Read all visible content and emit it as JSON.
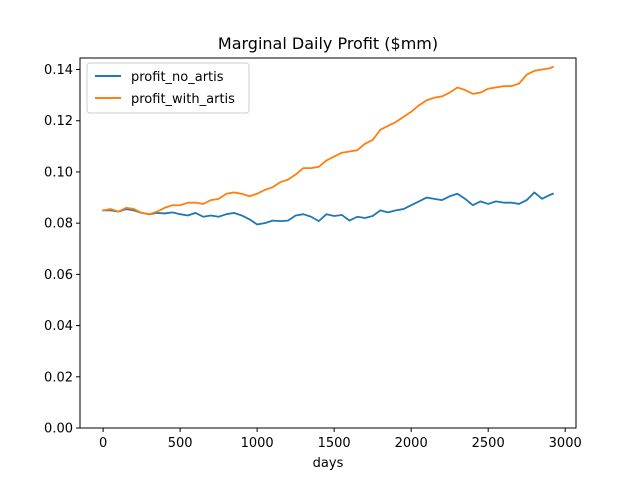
{
  "chart_data": {
    "type": "line",
    "title": "Marginal Daily Profit ($mm)",
    "xlabel": "days",
    "ylabel": "",
    "xlim": [
      -150,
      3070
    ],
    "ylim": [
      0.0,
      0.1445
    ],
    "x_ticks": [
      0,
      500,
      1000,
      1500,
      2000,
      2500,
      3000
    ],
    "x_tick_labels": [
      "0",
      "500",
      "1000",
      "1500",
      "2000",
      "2500",
      "3000"
    ],
    "y_ticks": [
      0.0,
      0.02,
      0.04,
      0.06,
      0.08,
      0.1,
      0.12,
      0.14
    ],
    "y_tick_labels": [
      "0.00",
      "0.02",
      "0.04",
      "0.06",
      "0.08",
      "0.10",
      "0.12",
      "0.14"
    ],
    "grid": false,
    "legend_position": "upper-left",
    "series": [
      {
        "name": "profit_no_artis",
        "color": "#1f77b4",
        "x": [
          0,
          50,
          100,
          150,
          200,
          250,
          300,
          350,
          400,
          450,
          500,
          550,
          600,
          650,
          700,
          750,
          800,
          850,
          900,
          950,
          1000,
          1050,
          1100,
          1150,
          1200,
          1250,
          1300,
          1350,
          1400,
          1450,
          1500,
          1550,
          1600,
          1650,
          1700,
          1750,
          1800,
          1850,
          1900,
          1950,
          2000,
          2050,
          2100,
          2150,
          2200,
          2250,
          2300,
          2350,
          2400,
          2450,
          2500,
          2550,
          2600,
          2650,
          2700,
          2750,
          2800,
          2850,
          2900,
          2920
        ],
        "y": [
          0.085,
          0.085,
          0.0845,
          0.0855,
          0.085,
          0.084,
          0.0835,
          0.084,
          0.0838,
          0.0842,
          0.0835,
          0.083,
          0.084,
          0.0825,
          0.083,
          0.0825,
          0.0835,
          0.084,
          0.083,
          0.0815,
          0.0795,
          0.08,
          0.081,
          0.0808,
          0.081,
          0.083,
          0.0835,
          0.0825,
          0.0808,
          0.0835,
          0.0828,
          0.0832,
          0.081,
          0.0825,
          0.082,
          0.0828,
          0.085,
          0.0842,
          0.085,
          0.0855,
          0.087,
          0.0885,
          0.09,
          0.0895,
          0.089,
          0.0905,
          0.0915,
          0.0895,
          0.087,
          0.0885,
          0.0875,
          0.0885,
          0.088,
          0.088,
          0.0875,
          0.089,
          0.092,
          0.0895,
          0.091,
          0.0915
        ]
      },
      {
        "name": "profit_with_artis",
        "color": "#ff7f0e",
        "x": [
          0,
          50,
          100,
          150,
          200,
          250,
          300,
          350,
          400,
          450,
          500,
          550,
          600,
          650,
          700,
          750,
          800,
          850,
          900,
          950,
          1000,
          1050,
          1100,
          1150,
          1200,
          1250,
          1300,
          1350,
          1400,
          1450,
          1500,
          1550,
          1600,
          1650,
          1700,
          1750,
          1800,
          1850,
          1900,
          1950,
          2000,
          2050,
          2100,
          2150,
          2200,
          2250,
          2300,
          2350,
          2400,
          2450,
          2500,
          2550,
          2600,
          2650,
          2700,
          2750,
          2800,
          2850,
          2900,
          2920
        ],
        "y": [
          0.085,
          0.0855,
          0.0845,
          0.086,
          0.0855,
          0.084,
          0.0835,
          0.0845,
          0.086,
          0.087,
          0.087,
          0.088,
          0.088,
          0.0875,
          0.089,
          0.0895,
          0.0915,
          0.092,
          0.0915,
          0.0905,
          0.0915,
          0.093,
          0.094,
          0.096,
          0.097,
          0.099,
          0.1015,
          0.1015,
          0.102,
          0.1045,
          0.106,
          0.1075,
          0.108,
          0.1085,
          0.111,
          0.1125,
          0.1165,
          0.118,
          0.1195,
          0.1215,
          0.1235,
          0.126,
          0.128,
          0.129,
          0.1295,
          0.131,
          0.133,
          0.132,
          0.1305,
          0.131,
          0.1325,
          0.133,
          0.1335,
          0.1335,
          0.1345,
          0.138,
          0.1395,
          0.14,
          0.1405,
          0.141
        ]
      }
    ]
  }
}
